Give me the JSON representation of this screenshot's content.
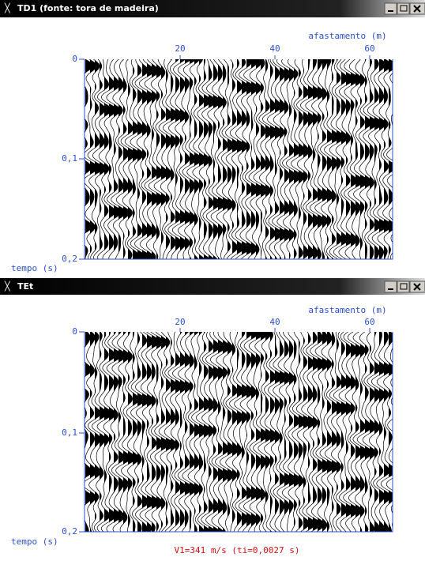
{
  "windows": [
    {
      "title": "TD1  (fonte: tora de madeira)",
      "x_axis_label": "afastamento (m)",
      "x_ticks": [
        "20",
        "40",
        "60"
      ],
      "y_axis_label": "tempo (s)",
      "y_ticks": [
        "0",
        "0,1",
        "0,2"
      ]
    },
    {
      "title": "TEt",
      "x_axis_label": "afastamento (m)",
      "x_ticks": [
        "20",
        "40",
        "60"
      ],
      "y_axis_label": "tempo (s)",
      "y_ticks": [
        "0",
        "0,1",
        "0,2"
      ],
      "footer": "V1=341 m/s (ti=0,0027 s)"
    }
  ]
}
